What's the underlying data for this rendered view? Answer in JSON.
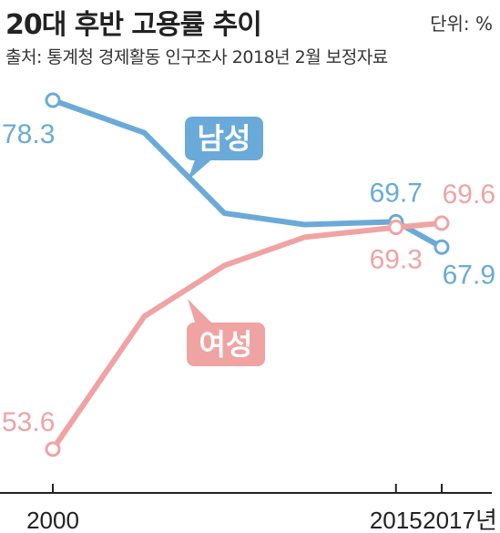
{
  "title": "20대 후반 고용률 추이",
  "unit": "단위: %",
  "source": "출처: 통계청 경제활동 인구조사 2018년 2월 보정자료",
  "colors": {
    "male": "#6aaad8",
    "female": "#f0a3a3",
    "axis": "#222222"
  },
  "chart_data": {
    "type": "line",
    "x": [
      2000,
      2003,
      2006,
      2009,
      2012,
      2015,
      2017
    ],
    "xtick_labels": [
      "2000",
      "2015",
      "2017년"
    ],
    "xtick_positions": [
      2000,
      2015,
      2017
    ],
    "ylim": [
      50,
      82
    ],
    "series": [
      {
        "name": "남성",
        "key": "male",
        "values": [
          78.3,
          76.0,
          70.3,
          69.5,
          null,
          69.7,
          67.9
        ],
        "x": [
          2000,
          2004,
          2007.5,
          2011,
          null,
          2015,
          2017
        ],
        "markers": [
          {
            "x": 2000,
            "value": 78.3,
            "label": "78.3"
          },
          {
            "x": 2015,
            "value": 69.7,
            "label": "69.7"
          },
          {
            "x": 2017,
            "value": 67.9,
            "label": "67.9"
          }
        ]
      },
      {
        "name": "여성",
        "key": "female",
        "values": [
          53.6,
          63.0,
          66.6,
          68.6,
          69.3,
          69.6
        ],
        "x": [
          2000,
          2004,
          2007.5,
          2011,
          2015,
          2017
        ],
        "markers": [
          {
            "x": 2000,
            "value": 53.6,
            "label": "53.6"
          },
          {
            "x": 2015,
            "value": 69.3,
            "label": "69.3"
          },
          {
            "x": 2017,
            "value": 69.6,
            "label": "69.6"
          }
        ]
      }
    ]
  }
}
